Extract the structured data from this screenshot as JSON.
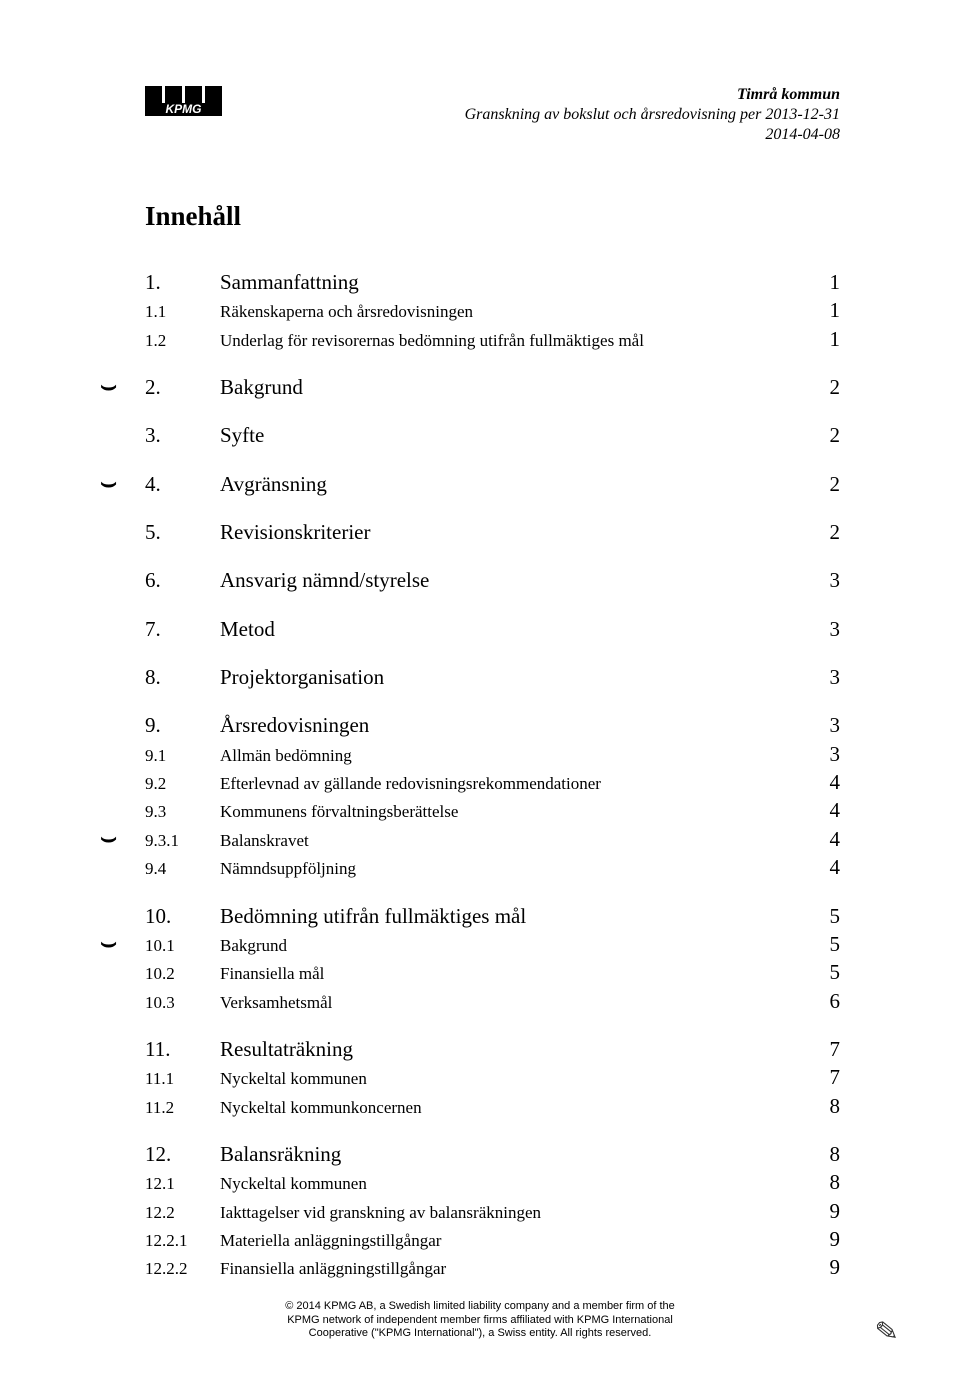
{
  "header": {
    "line1": "Timrå kommun",
    "line2": "Granskning av bokslut och årsredovisning per 2013-12-31",
    "line3": "2014-04-08"
  },
  "title": "Innehåll",
  "toc": [
    {
      "group": [
        {
          "num": "1.",
          "title": "Sammanfattning",
          "page": "1",
          "level": 1
        },
        {
          "num": "1.1",
          "title": "Räkenskaperna och årsredovisningen",
          "page": "1",
          "level": 2
        },
        {
          "num": "1.2",
          "title": "Underlag för revisorernas bedömning utifrån fullmäktiges mål",
          "page": "1",
          "level": 2
        }
      ]
    },
    {
      "group": [
        {
          "num": "2.",
          "title": "Bakgrund",
          "page": "2",
          "level": 1,
          "marker": true
        }
      ]
    },
    {
      "group": [
        {
          "num": "3.",
          "title": "Syfte",
          "page": "2",
          "level": 1
        }
      ]
    },
    {
      "group": [
        {
          "num": "4.",
          "title": "Avgränsning",
          "page": "2",
          "level": 1,
          "marker": true
        }
      ]
    },
    {
      "group": [
        {
          "num": "5.",
          "title": "Revisionskriterier",
          "page": "2",
          "level": 1
        }
      ]
    },
    {
      "group": [
        {
          "num": "6.",
          "title": "Ansvarig nämnd/styrelse",
          "page": "3",
          "level": 1
        }
      ]
    },
    {
      "group": [
        {
          "num": "7.",
          "title": "Metod",
          "page": "3",
          "level": 1
        }
      ]
    },
    {
      "group": [
        {
          "num": "8.",
          "title": "Projektorganisation",
          "page": "3",
          "level": 1
        }
      ]
    },
    {
      "group": [
        {
          "num": "9.",
          "title": "Årsredovisningen",
          "page": "3",
          "level": 1
        },
        {
          "num": "9.1",
          "title": "Allmän bedömning",
          "page": "3",
          "level": 2
        },
        {
          "num": "9.2",
          "title": "Efterlevnad av gällande redovisningsrekommendationer",
          "page": "4",
          "level": 2
        },
        {
          "num": "9.3",
          "title": "Kommunens förvaltningsberättelse",
          "page": "4",
          "level": 2
        },
        {
          "num": "9.3.1",
          "title": "Balanskravet",
          "page": "4",
          "level": 3,
          "marker": true
        },
        {
          "num": "9.4",
          "title": "Nämndsuppföljning",
          "page": "4",
          "level": 2
        }
      ]
    },
    {
      "group": [
        {
          "num": "10.",
          "title": "Bedömning utifrån fullmäktiges mål",
          "page": "5",
          "level": 1
        },
        {
          "num": "10.1",
          "title": "Bakgrund",
          "page": "5",
          "level": 2,
          "marker": true
        },
        {
          "num": "10.2",
          "title": "Finansiella mål",
          "page": "5",
          "level": 2
        },
        {
          "num": "10.3",
          "title": "Verksamhetsmål",
          "page": "6",
          "level": 2
        }
      ]
    },
    {
      "group": [
        {
          "num": "11.",
          "title": "Resultaträkning",
          "page": "7",
          "level": 1
        },
        {
          "num": "11.1",
          "title": "Nyckeltal kommunen",
          "page": "7",
          "level": 2
        },
        {
          "num": "11.2",
          "title": "Nyckeltal kommunkoncernen",
          "page": "8",
          "level": 2
        }
      ]
    },
    {
      "group": [
        {
          "num": "12.",
          "title": "Balansräkning",
          "page": "8",
          "level": 1
        },
        {
          "num": "12.1",
          "title": "Nyckeltal kommunen",
          "page": "8",
          "level": 2
        },
        {
          "num": "12.2",
          "title": "Iakttagelser vid granskning av balansräkningen",
          "page": "9",
          "level": 2
        },
        {
          "num": "12.2.1",
          "title": "Materiella anläggningstillgångar",
          "page": "9",
          "level": 3
        },
        {
          "num": "12.2.2",
          "title": "Finansiella anläggningstillgångar",
          "page": "9",
          "level": 3
        }
      ]
    }
  ],
  "footer": {
    "line1": "© 2014 KPMG AB, a Swedish limited liability company and a member firm of the",
    "line2": "KPMG network of independent member firms affiliated with KPMG International",
    "line3": "Cooperative (\"KPMG International\"), a Swiss entity. All rights reserved."
  },
  "logo_text": "KPMG",
  "paraph_glyph": "✎"
}
